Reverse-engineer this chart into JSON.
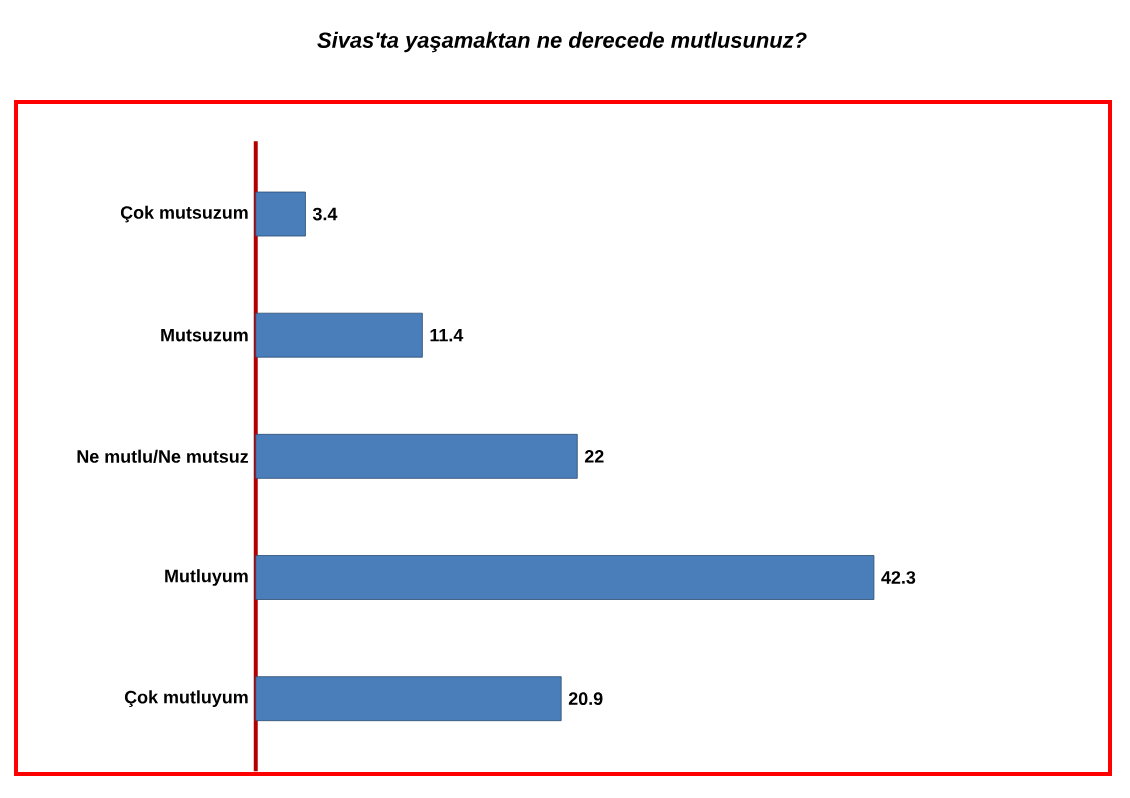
{
  "chart_data": {
    "type": "bar",
    "orientation": "horizontal",
    "title": "Sivas'ta yaşamaktan ne derecede mutlusunuz?",
    "categories": [
      "Çok mutsuzum",
      "Mutsuzum",
      "Ne mutlu/Ne mutsuz",
      "Mutluyum",
      "Çok mutluyum"
    ],
    "values": [
      3.4,
      11.4,
      22,
      42.3,
      20.9
    ],
    "color": "#4a7ebb",
    "data_labels": true
  }
}
